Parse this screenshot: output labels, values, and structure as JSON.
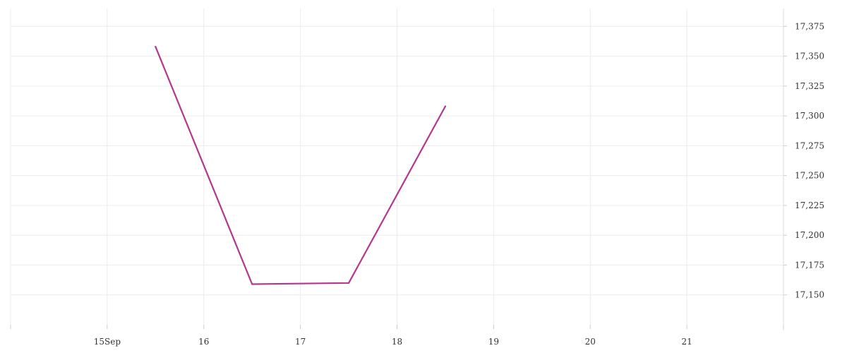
{
  "chart_data": {
    "type": "line",
    "title": "",
    "xlabel": "",
    "ylabel": "",
    "x_ticks": [
      {
        "date": "2023-09-15",
        "label": "15Sep"
      },
      {
        "date": "2023-09-16",
        "label": "16"
      },
      {
        "date": "2023-09-17",
        "label": "17"
      },
      {
        "date": "2023-09-18",
        "label": "18"
      },
      {
        "date": "2023-09-19",
        "label": "19"
      },
      {
        "date": "2023-09-20",
        "label": "20"
      },
      {
        "date": "2023-09-21",
        "label": "21"
      }
    ],
    "y_ticks": [
      {
        "value": 17150,
        "label": "17,150"
      },
      {
        "value": 17175,
        "label": "17,175"
      },
      {
        "value": 17200,
        "label": "17,200"
      },
      {
        "value": 17225,
        "label": "17,225"
      },
      {
        "value": 17250,
        "label": "17,250"
      },
      {
        "value": 17275,
        "label": "17,275"
      },
      {
        "value": 17300,
        "label": "17,300"
      },
      {
        "value": 17325,
        "label": "17,325"
      },
      {
        "value": 17350,
        "label": "17,350"
      },
      {
        "value": 17375,
        "label": "17,375"
      }
    ],
    "xlim": [
      "2023-09-14",
      "2023-09-22"
    ],
    "ylim": [
      17125,
      17390
    ],
    "grid": true,
    "y_axis_side": "right",
    "series": [
      {
        "color": "#b5358f",
        "points": [
          {
            "x": "2023-09-15T12:00",
            "y": 17358
          },
          {
            "x": "2023-09-16T12:00",
            "y": 17159
          },
          {
            "x": "2023-09-17T12:00",
            "y": 17160
          },
          {
            "x": "2023-09-18T12:00",
            "y": 17308
          }
        ]
      }
    ]
  }
}
